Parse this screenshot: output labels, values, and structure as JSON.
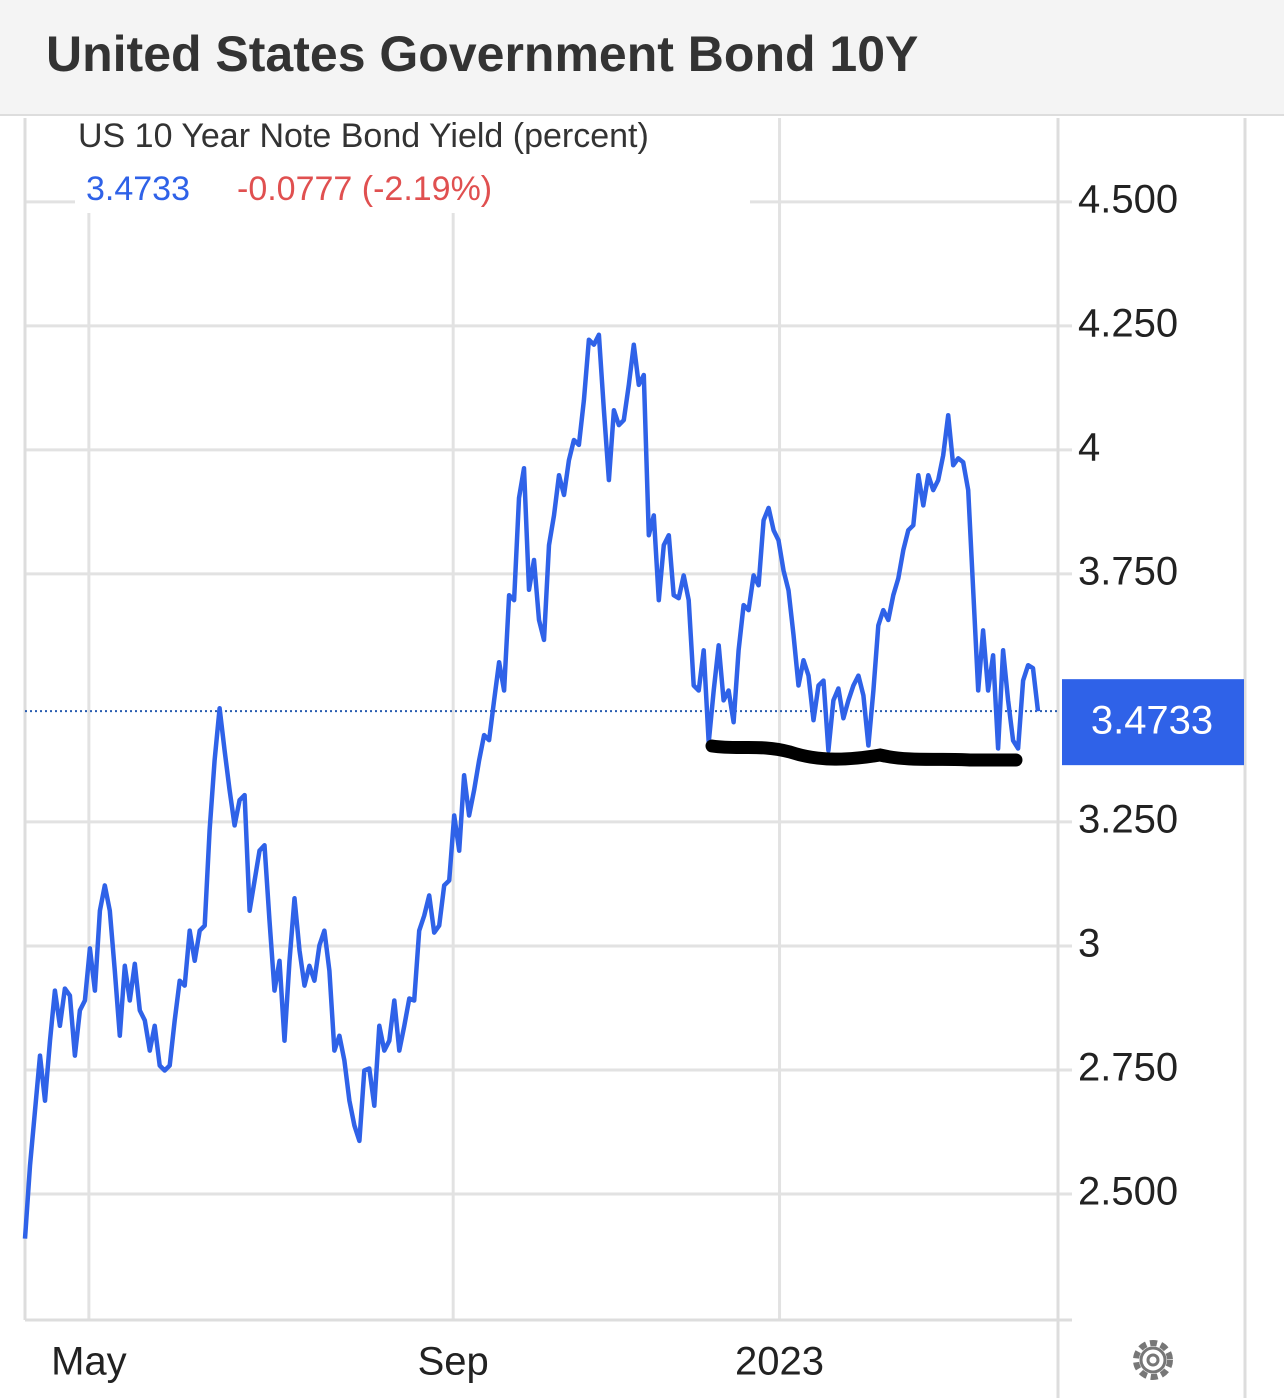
{
  "chart_data": {
    "type": "line",
    "title": "United States Government Bond 10Y",
    "subtitle": "US 10 Year Note Bond Yield (percent)",
    "last_value": 3.4733,
    "change": "-0.0777 (-2.19%)",
    "color": "#2f62e8",
    "grid": true,
    "values": [
      2.41,
      2.557,
      2.668,
      2.779,
      2.688,
      2.809,
      2.91,
      2.839,
      2.914,
      2.9,
      2.779,
      2.87,
      2.89,
      2.995,
      2.91,
      3.071,
      3.122,
      3.071,
      2.95,
      2.819,
      2.96,
      2.89,
      2.964,
      2.87,
      2.85,
      2.789,
      2.839,
      2.759,
      2.749,
      2.759,
      2.85,
      2.93,
      2.92,
      3.031,
      2.97,
      3.031,
      3.041,
      3.233,
      3.374,
      3.479,
      3.394,
      3.314,
      3.243,
      3.294,
      3.304,
      3.071,
      3.132,
      3.192,
      3.203,
      3.051,
      2.91,
      2.97,
      2.809,
      2.97,
      3.096,
      2.991,
      2.92,
      2.96,
      2.93,
      3.001,
      3.031,
      2.95,
      2.789,
      2.819,
      2.769,
      2.688,
      2.638,
      2.607,
      2.749,
      2.753,
      2.678,
      2.839,
      2.789,
      2.809,
      2.89,
      2.789,
      2.839,
      2.894,
      2.89,
      3.031,
      3.061,
      3.102,
      3.027,
      3.041,
      3.122,
      3.132,
      3.263,
      3.192,
      3.344,
      3.263,
      3.314,
      3.374,
      3.425,
      3.415,
      3.495,
      3.572,
      3.515,
      3.707,
      3.697,
      3.903,
      3.963,
      3.718,
      3.778,
      3.657,
      3.617,
      3.808,
      3.868,
      3.949,
      3.909,
      3.979,
      4.02,
      4.01,
      4.1,
      4.222,
      4.212,
      4.232,
      4.08,
      3.939,
      4.08,
      4.05,
      4.06,
      4.131,
      4.212,
      4.131,
      4.151,
      3.828,
      3.868,
      3.697,
      3.808,
      3.828,
      3.707,
      3.701,
      3.747,
      3.697,
      3.525,
      3.515,
      3.596,
      3.41,
      3.515,
      3.606,
      3.495,
      3.515,
      3.451,
      3.596,
      3.687,
      3.677,
      3.747,
      3.727,
      3.858,
      3.883,
      3.838,
      3.818,
      3.757,
      3.717,
      3.627,
      3.525,
      3.576,
      3.545,
      3.455,
      3.525,
      3.535,
      3.394,
      3.495,
      3.519,
      3.459,
      3.495,
      3.525,
      3.545,
      3.505,
      3.404,
      3.515,
      3.646,
      3.677,
      3.657,
      3.707,
      3.741,
      3.798,
      3.838,
      3.848,
      3.949,
      3.888,
      3.949,
      3.919,
      3.939,
      3.989,
      4.07,
      3.969,
      3.983,
      3.975,
      3.919,
      3.717,
      3.515,
      3.636,
      3.515,
      3.586,
      3.398,
      3.596,
      3.495,
      3.414,
      3.398,
      3.535,
      3.566,
      3.56,
      3.4733
    ],
    "xlim": [
      0,
      207
    ],
    "xticks": [
      {
        "value": 12.8,
        "label": "May"
      },
      {
        "value": 85.8,
        "label": "Sep"
      },
      {
        "value": 151.2,
        "label": "2023"
      }
    ],
    "ylim": [
      2.246,
      4.669
    ],
    "yticks": [
      {
        "value": 4.5,
        "label": "4.500"
      },
      {
        "value": 4.25,
        "label": "4.250"
      },
      4,
      {
        "value": 3.75,
        "label": "3.750"
      },
      {
        "value": 3.25,
        "label": "3.250"
      },
      3,
      {
        "value": 2.75,
        "label": "2.750"
      },
      {
        "value": 2.5,
        "label": "2.500"
      }
    ]
  }
}
